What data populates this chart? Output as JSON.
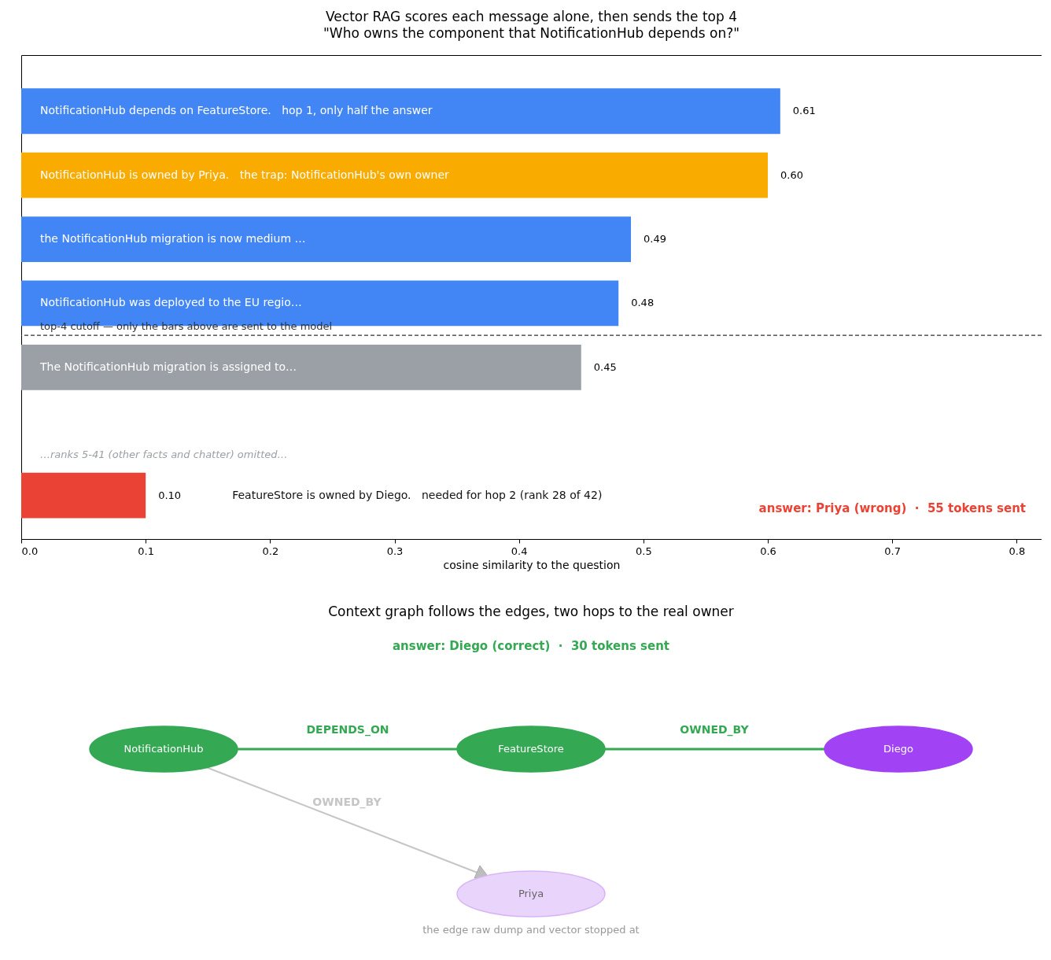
{
  "chart_data": [
    {
      "type": "bar",
      "orientation": "horizontal",
      "title": "Vector RAG scores each message alone, then sends the top 4",
      "subtitle": "\"Who owns the component that NotificationHub depends on?\"",
      "xlabel": "cosine similarity to the question",
      "categories": [
        "NotificationHub depends on FeatureStore.   hop 1, only half the answer",
        "NotificationHub is owned by Priya.   the trap: NotificationHub's own owner",
        "the NotificationHub migration is now medium …",
        "NotificationHub was deployed to the EU regio…",
        "The NotificationHub migration is assigned to…",
        null,
        "FeatureStore is owned by Diego.   needed for hop 2 (rank 28 of 42)"
      ],
      "values": [
        0.61,
        0.6,
        0.49,
        0.48,
        0.45,
        null,
        0.1
      ],
      "value_labels": [
        "0.61",
        "0.60",
        "0.49",
        "0.48",
        "0.45",
        null,
        "0.10"
      ],
      "colors": [
        "#4285f4",
        "#f9ab00",
        "#4285f4",
        "#4285f4",
        "#9aa0a6",
        null,
        "#ea4335"
      ],
      "xlim": [
        0,
        0.82
      ],
      "xticks": [
        {
          "value": 0,
          "label": "0.0"
        },
        {
          "value": 0.1,
          "label": "0.1"
        },
        {
          "value": 0.2,
          "label": "0.2"
        },
        {
          "value": 0.3,
          "label": "0.3"
        },
        {
          "value": 0.4,
          "label": "0.4"
        },
        {
          "value": 0.5,
          "label": "0.5"
        },
        {
          "value": 0.6,
          "label": "0.6"
        },
        {
          "value": 0.7,
          "label": "0.7"
        },
        {
          "value": 0.8,
          "label": "0.8"
        }
      ],
      "annotations": [
        "…ranks 5-41 (other facts and chatter) omitted…",
        "answer: Priya (wrong)  ·  55 tokens sent",
        "top-4 cutoff — only the bars above are sent to the model"
      ],
      "tick_labels": "x",
      "grid": false
    },
    {
      "type": "other",
      "title": "Context graph follows the edges, two hops to the real owner",
      "subtitle": "answer: Diego (correct)  ·  30 tokens sent",
      "annotations": [
        "NotificationHub",
        "FeatureStore",
        "Diego",
        "Priya",
        "DEPENDS_ON",
        "OWNED_BY",
        "OWNED_BY",
        "the edge raw dump and vector stopped at"
      ]
    }
  ]
}
